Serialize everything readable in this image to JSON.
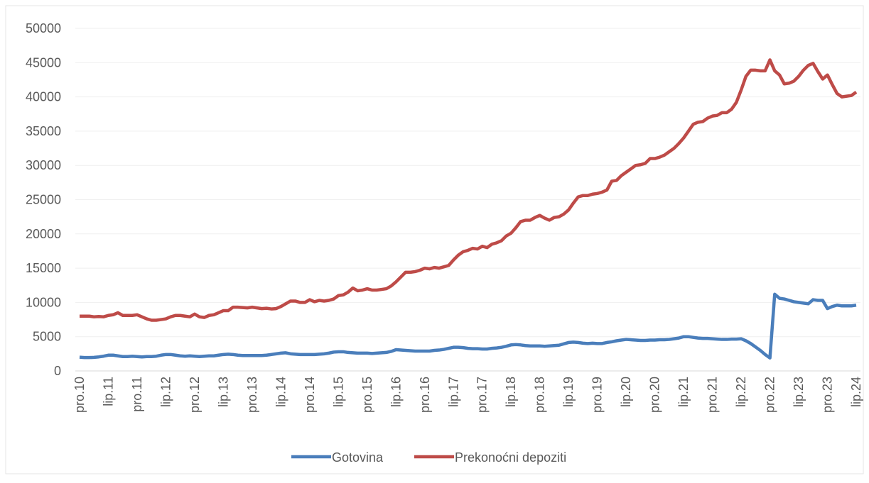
{
  "chart_data": {
    "type": "line",
    "categories": [
      "pro.10",
      null,
      null,
      null,
      null,
      null,
      "lip.11",
      null,
      null,
      null,
      null,
      null,
      "pro.11",
      null,
      null,
      null,
      null,
      null,
      "lip.12",
      null,
      null,
      null,
      null,
      null,
      "pro.12",
      null,
      null,
      null,
      null,
      null,
      "lip.13",
      null,
      null,
      null,
      null,
      null,
      "pro.13",
      null,
      null,
      null,
      null,
      null,
      "lip.14",
      null,
      null,
      null,
      null,
      null,
      "pro.14",
      null,
      null,
      null,
      null,
      null,
      "lip.15",
      null,
      null,
      null,
      null,
      null,
      "pro.15",
      null,
      null,
      null,
      null,
      null,
      "lip.16",
      null,
      null,
      null,
      null,
      null,
      "pro.16",
      null,
      null,
      null,
      null,
      null,
      "lip.17",
      null,
      null,
      null,
      null,
      null,
      "pro.17",
      null,
      null,
      null,
      null,
      null,
      "lip.18",
      null,
      null,
      null,
      null,
      null,
      "pro.18",
      null,
      null,
      null,
      null,
      null,
      "lip.19",
      null,
      null,
      null,
      null,
      null,
      "pro.19",
      null,
      null,
      null,
      null,
      null,
      "lip.20",
      null,
      null,
      null,
      null,
      null,
      "pro.20",
      null,
      null,
      null,
      null,
      null,
      "lip.21",
      null,
      null,
      null,
      null,
      null,
      "pro.21",
      null,
      null,
      null,
      null,
      null,
      "lip.22",
      null,
      null,
      null,
      null,
      null,
      "pro.22",
      null,
      null,
      null,
      null,
      null,
      "lip.23",
      null,
      null,
      null,
      null,
      null,
      "pro.23",
      null,
      null,
      null,
      null,
      null,
      "lip.24"
    ],
    "series": [
      {
        "name": "Gotovina",
        "color": "#4a7ebb",
        "values": [
          2000,
          1950,
          1950,
          1980,
          2050,
          2150,
          2300,
          2300,
          2200,
          2100,
          2100,
          2150,
          2100,
          2050,
          2100,
          2100,
          2150,
          2300,
          2400,
          2400,
          2300,
          2200,
          2150,
          2200,
          2150,
          2100,
          2150,
          2200,
          2200,
          2300,
          2400,
          2450,
          2400,
          2300,
          2250,
          2250,
          2250,
          2250,
          2250,
          2300,
          2400,
          2500,
          2600,
          2650,
          2500,
          2450,
          2400,
          2400,
          2400,
          2400,
          2450,
          2500,
          2600,
          2750,
          2800,
          2800,
          2700,
          2650,
          2600,
          2600,
          2600,
          2550,
          2600,
          2650,
          2700,
          2850,
          3100,
          3050,
          3000,
          2950,
          2900,
          2900,
          2900,
          2900,
          3000,
          3050,
          3150,
          3300,
          3450,
          3450,
          3400,
          3300,
          3250,
          3250,
          3200,
          3200,
          3300,
          3350,
          3450,
          3600,
          3800,
          3850,
          3800,
          3700,
          3650,
          3650,
          3650,
          3600,
          3650,
          3700,
          3750,
          3950,
          4150,
          4200,
          4150,
          4050,
          4000,
          4050,
          4000,
          4000,
          4150,
          4250,
          4400,
          4500,
          4600,
          4550,
          4500,
          4450,
          4450,
          4500,
          4500,
          4550,
          4550,
          4600,
          4700,
          4800,
          5000,
          5000,
          4900,
          4800,
          4750,
          4750,
          4700,
          4650,
          4600,
          4600,
          4650,
          4650,
          4700,
          4400,
          4000,
          3500,
          3000,
          2400,
          1900,
          11200,
          10600,
          10500,
          10300,
          10100,
          10000,
          9900,
          9800,
          10400,
          10300,
          10300,
          9100,
          9400,
          9600,
          9500,
          9500,
          9500,
          9600
        ]
      },
      {
        "name": "Prekonoćni depoziti",
        "color": "#be4b48",
        "values": [
          8000,
          8000,
          8000,
          7900,
          7950,
          7900,
          8100,
          8200,
          8500,
          8100,
          8100,
          8100,
          8200,
          7900,
          7600,
          7400,
          7400,
          7500,
          7600,
          7900,
          8100,
          8100,
          8000,
          7900,
          8300,
          7900,
          7800,
          8100,
          8200,
          8500,
          8800,
          8800,
          9300,
          9300,
          9250,
          9200,
          9300,
          9200,
          9100,
          9150,
          9050,
          9100,
          9400,
          9800,
          10200,
          10200,
          10000,
          10000,
          10400,
          10100,
          10300,
          10200,
          10300,
          10500,
          11000,
          11100,
          11500,
          12100,
          11700,
          11800,
          12000,
          11800,
          11800,
          11900,
          12000,
          12400,
          13000,
          13700,
          14400,
          14400,
          14500,
          14700,
          15000,
          14900,
          15100,
          15000,
          15200,
          15400,
          16200,
          16900,
          17400,
          17600,
          17900,
          17800,
          18200,
          18000,
          18500,
          18700,
          19000,
          19700,
          20100,
          20900,
          21800,
          22000,
          22000,
          22400,
          22700,
          22300,
          22000,
          22400,
          22500,
          22900,
          23500,
          24500,
          25400,
          25600,
          25600,
          25800,
          25900,
          26100,
          26400,
          27700,
          27800,
          28500,
          29000,
          29500,
          30000,
          30100,
          30300,
          31000,
          31000,
          31200,
          31500,
          32000,
          32500,
          33200,
          34000,
          35000,
          36000,
          36300,
          36400,
          36900,
          37200,
          37300,
          37700,
          37700,
          38200,
          39200,
          41000,
          43000,
          43900,
          43900,
          43800,
          43800,
          45400,
          43800,
          43200,
          41900,
          42000,
          42300,
          43000,
          43900,
          44600,
          44900,
          43700,
          42600,
          43200,
          41800,
          40500,
          40000,
          40100,
          40200,
          40700
        ]
      }
    ],
    "ylim": [
      0,
      50000
    ],
    "yticks": [
      0,
      5000,
      10000,
      15000,
      20000,
      25000,
      30000,
      35000,
      40000,
      45000,
      50000
    ],
    "grid": true,
    "legend": "bottom"
  }
}
